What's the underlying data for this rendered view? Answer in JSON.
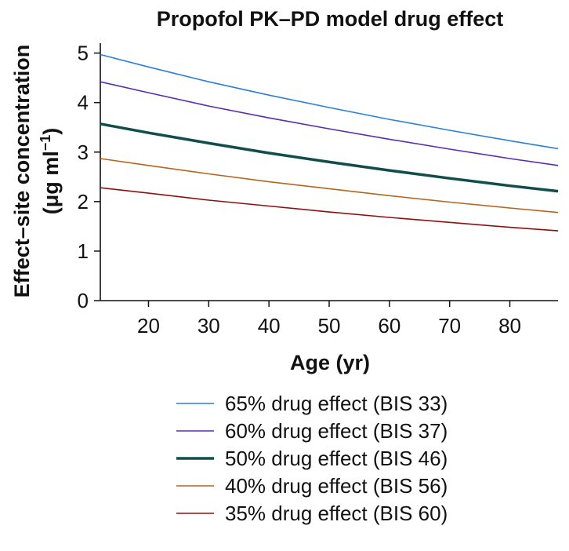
{
  "chart_data": {
    "type": "line",
    "title": "Propofol PK–PD model drug effect",
    "xlabel": "Age (yr)",
    "ylabel_line1": "Effect–site concentration",
    "ylabel_line2_prefix": "(μg ml",
    "ylabel_line2_sup": "−1",
    "ylabel_line2_suffix": ")",
    "xlim": [
      12,
      88
    ],
    "ylim": [
      0,
      5.2
    ],
    "x_ticks": [
      20,
      30,
      40,
      50,
      60,
      70,
      80
    ],
    "y_ticks": [
      0,
      1,
      2,
      3,
      4,
      5
    ],
    "x": [
      12,
      20,
      30,
      40,
      50,
      60,
      70,
      80,
      88
    ],
    "series": [
      {
        "name": "65% drug effect (BIS 33)",
        "color": "#2b7fd6",
        "bold": false,
        "values": [
          4.97,
          4.72,
          4.42,
          4.15,
          3.9,
          3.66,
          3.44,
          3.23,
          3.07
        ]
      },
      {
        "name": "60% drug effect (BIS 37)",
        "color": "#5b2bb0",
        "bold": false,
        "values": [
          4.42,
          4.2,
          3.93,
          3.69,
          3.47,
          3.26,
          3.06,
          2.87,
          2.73
        ]
      },
      {
        "name": "50% drug effect (BIS 46)",
        "color": "#114d4a",
        "bold": true,
        "values": [
          3.57,
          3.39,
          3.18,
          2.98,
          2.8,
          2.63,
          2.47,
          2.32,
          2.21
        ]
      },
      {
        "name": "40% drug effect (BIS 56)",
        "color": "#b5651d",
        "bold": false,
        "values": [
          2.87,
          2.73,
          2.56,
          2.4,
          2.26,
          2.12,
          1.99,
          1.87,
          1.78
        ]
      },
      {
        "name": "35% drug effect (BIS 60)",
        "color": "#8e1010",
        "bold": false,
        "values": [
          2.28,
          2.17,
          2.03,
          1.91,
          1.79,
          1.68,
          1.58,
          1.48,
          1.41
        ]
      }
    ]
  }
}
